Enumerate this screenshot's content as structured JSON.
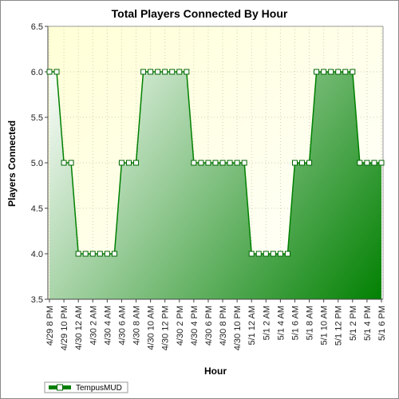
{
  "chart_data": {
    "type": "area",
    "title": "Total Players Connected By Hour",
    "xlabel": "Hour",
    "ylabel": "Players Connected",
    "ylim": [
      3.5,
      6.5
    ],
    "yticks": [
      "3.5",
      "4.0",
      "4.5",
      "5.0",
      "5.5",
      "6.0",
      "6.5"
    ],
    "grid": true,
    "legend": "bottom-left",
    "x": [
      "4/29 8 PM",
      "4/29 9 PM",
      "4/29 10 PM",
      "4/29 11 PM",
      "4/30 12 AM",
      "4/30 1 AM",
      "4/30 2 AM",
      "4/30 3 AM",
      "4/30 4 AM",
      "4/30 5 AM",
      "4/30 6 AM",
      "4/30 7 AM",
      "4/30 8 AM",
      "4/30 9 AM",
      "4/30 10 AM",
      "4/30 11 AM",
      "4/30 12 PM",
      "4/30 1 PM",
      "4/30 2 PM",
      "4/30 3 PM",
      "4/30 4 PM",
      "4/30 5 PM",
      "4/30 6 PM",
      "4/30 7 PM",
      "4/30 8 PM",
      "4/30 9 PM",
      "4/30 10 PM",
      "4/30 11 PM",
      "5/1 12 AM",
      "5/1 1 AM",
      "5/1 2 AM",
      "5/1 3 AM",
      "5/1 4 AM",
      "5/1 5 AM",
      "5/1 6 AM",
      "5/1 7 AM",
      "5/1 8 AM",
      "5/1 9 AM",
      "5/1 10 AM",
      "5/1 11 AM",
      "5/1 12 PM",
      "5/1 1 PM",
      "5/1 2 PM",
      "5/1 3 PM",
      "5/1 4 PM",
      "5/1 5 PM",
      "5/1 6 PM"
    ],
    "xtick_labels": [
      "4/29 8 PM",
      "4/29 10 PM",
      "4/30 12 AM",
      "4/30 2 AM",
      "4/30 4 AM",
      "4/30 6 AM",
      "4/30 8 AM",
      "4/30 10 AM",
      "4/30 12 PM",
      "4/30 2 PM",
      "4/30 4 PM",
      "4/30 6 PM",
      "4/30 8 PM",
      "4/30 10 PM",
      "5/1 12 AM",
      "5/1 2 AM",
      "5/1 4 AM",
      "5/1 6 AM",
      "5/1 8 AM",
      "5/1 10 AM",
      "5/1 12 PM",
      "5/1 2 PM",
      "5/1 4 PM",
      "5/1 6 PM"
    ],
    "series": [
      {
        "name": "TempusMUD",
        "color": "#008000",
        "values": [
          6,
          6,
          5,
          5,
          4,
          4,
          4,
          4,
          4,
          4,
          5,
          5,
          5,
          6,
          6,
          6,
          6,
          6,
          6,
          6,
          5,
          5,
          5,
          5,
          5,
          5,
          5,
          5,
          4,
          4,
          4,
          4,
          4,
          4,
          5,
          5,
          5,
          6,
          6,
          6,
          6,
          6,
          6,
          5,
          5,
          5,
          5
        ]
      }
    ],
    "colors": {
      "plot_background_top": "#ffffd0",
      "fill_light": "#ffffff",
      "fill_dark": "#008000",
      "line": "#008000",
      "grid": "#d2d2b4"
    }
  }
}
